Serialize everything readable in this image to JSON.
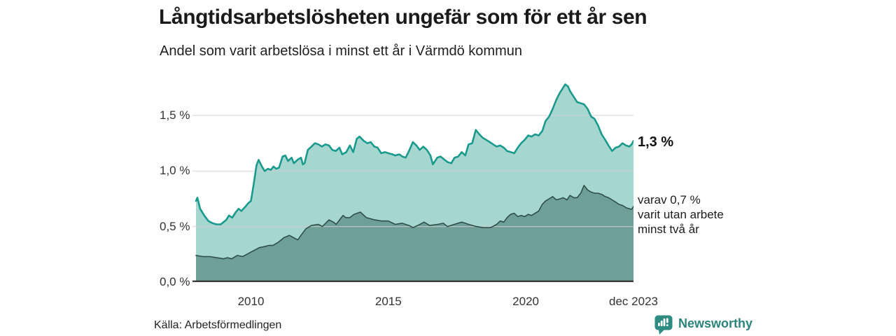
{
  "chart_data": {
    "type": "area",
    "title": "Långtidsarbetslösheten ungefär som för ett år sen",
    "subtitle": "Andel som varit arbetslösa i minst ett år i Värmdö kommun",
    "source": "Källa: Arbetsförmedlingen",
    "brand": "Newsworthy",
    "grid": "horizontal",
    "legend": "end-of-line-labels",
    "xlim": [
      2008.0,
      2023.92
    ],
    "ylim": [
      0,
      1.846
    ],
    "x_ticks": [
      {
        "label": "2010",
        "year": 2010
      },
      {
        "label": "2015",
        "year": 2015
      },
      {
        "label": "2020",
        "year": 2020
      },
      {
        "label": "dec 2023",
        "year": 2023.92
      }
    ],
    "y_ticks": [
      {
        "label": "1,5 %",
        "value": 1.5
      },
      {
        "label": "1,0 %",
        "value": 1.0
      },
      {
        "label": "0,5 %",
        "value": 0.5
      },
      {
        "label": "0,0 %",
        "value": 0.0
      }
    ],
    "annotations": {
      "primary": "1,3 %",
      "secondary_lines": [
        "varav 0,7 %",
        "varit utan arbete",
        "minst två år"
      ]
    },
    "colors": {
      "line_total": "#1a9a8c",
      "fill_total": "#a6d6d0",
      "line_two_years": "#2f4f49",
      "fill_two_years": "#6f9f99",
      "gridline": "#cfcfcf",
      "baseline": "#3d3d3d"
    },
    "series": [
      {
        "name": "minst ett år",
        "end_label": "1,3 %",
        "line_color": "#1a9a8c",
        "fill_color": "#a6d6d0",
        "line_width": 2.6,
        "points": [
          [
            2008.0,
            0.73
          ],
          [
            2008.05,
            0.76
          ],
          [
            2008.15,
            0.66
          ],
          [
            2008.3,
            0.6
          ],
          [
            2008.45,
            0.55
          ],
          [
            2008.6,
            0.53
          ],
          [
            2008.75,
            0.52
          ],
          [
            2008.9,
            0.52
          ],
          [
            2009.0,
            0.54
          ],
          [
            2009.1,
            0.56
          ],
          [
            2009.2,
            0.6
          ],
          [
            2009.32,
            0.58
          ],
          [
            2009.45,
            0.63
          ],
          [
            2009.55,
            0.66
          ],
          [
            2009.65,
            0.64
          ],
          [
            2009.8,
            0.68
          ],
          [
            2009.9,
            0.71
          ],
          [
            2010.0,
            0.73
          ],
          [
            2010.1,
            0.88
          ],
          [
            2010.2,
            1.05
          ],
          [
            2010.28,
            1.1
          ],
          [
            2010.4,
            1.04
          ],
          [
            2010.5,
            1.0
          ],
          [
            2010.62,
            1.02
          ],
          [
            2010.72,
            1.01
          ],
          [
            2010.82,
            1.04
          ],
          [
            2010.92,
            1.02
          ],
          [
            2011.02,
            1.03
          ],
          [
            2011.15,
            1.13
          ],
          [
            2011.25,
            1.14
          ],
          [
            2011.35,
            1.09
          ],
          [
            2011.48,
            1.12
          ],
          [
            2011.56,
            1.07
          ],
          [
            2011.69,
            1.1
          ],
          [
            2011.82,
            1.12
          ],
          [
            2011.89,
            1.06
          ],
          [
            2011.95,
            1.07
          ],
          [
            2012.07,
            1.19
          ],
          [
            2012.2,
            1.22
          ],
          [
            2012.33,
            1.25
          ],
          [
            2012.45,
            1.24
          ],
          [
            2012.58,
            1.22
          ],
          [
            2012.71,
            1.24
          ],
          [
            2012.84,
            1.23
          ],
          [
            2012.96,
            1.19
          ],
          [
            2013.09,
            1.18
          ],
          [
            2013.22,
            1.21
          ],
          [
            2013.32,
            1.15
          ],
          [
            2013.47,
            1.17
          ],
          [
            2013.6,
            1.23
          ],
          [
            2013.72,
            1.17
          ],
          [
            2013.85,
            1.29
          ],
          [
            2013.95,
            1.31
          ],
          [
            2014.11,
            1.27
          ],
          [
            2014.23,
            1.25
          ],
          [
            2014.36,
            1.26
          ],
          [
            2014.49,
            1.22
          ],
          [
            2014.61,
            1.21
          ],
          [
            2014.74,
            1.16
          ],
          [
            2014.88,
            1.17
          ],
          [
            2015.0,
            1.16
          ],
          [
            2015.15,
            1.15
          ],
          [
            2015.25,
            1.14
          ],
          [
            2015.4,
            1.15
          ],
          [
            2015.51,
            1.13
          ],
          [
            2015.63,
            1.12
          ],
          [
            2015.75,
            1.18
          ],
          [
            2015.89,
            1.26
          ],
          [
            2016.02,
            1.23
          ],
          [
            2016.14,
            1.19
          ],
          [
            2016.27,
            1.22
          ],
          [
            2016.4,
            1.19
          ],
          [
            2016.53,
            1.14
          ],
          [
            2016.62,
            1.06
          ],
          [
            2016.78,
            1.12
          ],
          [
            2016.9,
            1.13
          ],
          [
            2017.05,
            1.1
          ],
          [
            2017.16,
            1.08
          ],
          [
            2017.29,
            1.07
          ],
          [
            2017.41,
            1.12
          ],
          [
            2017.54,
            1.13
          ],
          [
            2017.67,
            1.17
          ],
          [
            2017.8,
            1.14
          ],
          [
            2017.92,
            1.24
          ],
          [
            2018.05,
            1.25
          ],
          [
            2018.18,
            1.37
          ],
          [
            2018.31,
            1.33
          ],
          [
            2018.43,
            1.3
          ],
          [
            2018.56,
            1.28
          ],
          [
            2018.69,
            1.26
          ],
          [
            2018.81,
            1.24
          ],
          [
            2018.94,
            1.22
          ],
          [
            2019.07,
            1.23
          ],
          [
            2019.2,
            1.21
          ],
          [
            2019.32,
            1.18
          ],
          [
            2019.45,
            1.17
          ],
          [
            2019.58,
            1.16
          ],
          [
            2019.71,
            1.21
          ],
          [
            2019.83,
            1.25
          ],
          [
            2019.96,
            1.28
          ],
          [
            2020.09,
            1.32
          ],
          [
            2020.21,
            1.31
          ],
          [
            2020.34,
            1.33
          ],
          [
            2020.47,
            1.32
          ],
          [
            2020.6,
            1.36
          ],
          [
            2020.72,
            1.45
          ],
          [
            2020.85,
            1.49
          ],
          [
            2020.98,
            1.56
          ],
          [
            2021.11,
            1.64
          ],
          [
            2021.23,
            1.7
          ],
          [
            2021.36,
            1.75
          ],
          [
            2021.44,
            1.78
          ],
          [
            2021.54,
            1.76
          ],
          [
            2021.61,
            1.72
          ],
          [
            2021.74,
            1.67
          ],
          [
            2021.87,
            1.62
          ],
          [
            2022.0,
            1.61
          ],
          [
            2022.12,
            1.6
          ],
          [
            2022.25,
            1.56
          ],
          [
            2022.38,
            1.49
          ],
          [
            2022.5,
            1.47
          ],
          [
            2022.63,
            1.41
          ],
          [
            2022.76,
            1.33
          ],
          [
            2022.89,
            1.28
          ],
          [
            2023.01,
            1.23
          ],
          [
            2023.14,
            1.18
          ],
          [
            2023.27,
            1.21
          ],
          [
            2023.39,
            1.22
          ],
          [
            2023.52,
            1.25
          ],
          [
            2023.65,
            1.23
          ],
          [
            2023.77,
            1.22
          ],
          [
            2023.85,
            1.24
          ],
          [
            2023.92,
            1.27
          ]
        ]
      },
      {
        "name": "minst två år",
        "end_label": "varav 0,7 % varit utan arbete minst två år",
        "line_color": "#2f4f49",
        "fill_color": "#6f9f99",
        "line_width": 1.6,
        "points": [
          [
            2008.0,
            0.24
          ],
          [
            2008.25,
            0.23
          ],
          [
            2008.5,
            0.23
          ],
          [
            2008.75,
            0.22
          ],
          [
            2009.0,
            0.21
          ],
          [
            2009.15,
            0.22
          ],
          [
            2009.3,
            0.21
          ],
          [
            2009.5,
            0.24
          ],
          [
            2009.7,
            0.23
          ],
          [
            2009.85,
            0.25
          ],
          [
            2010.0,
            0.27
          ],
          [
            2010.15,
            0.29
          ],
          [
            2010.3,
            0.31
          ],
          [
            2010.5,
            0.32
          ],
          [
            2010.65,
            0.33
          ],
          [
            2010.8,
            0.33
          ],
          [
            2011.0,
            0.36
          ],
          [
            2011.1,
            0.38
          ],
          [
            2011.2,
            0.4
          ],
          [
            2011.4,
            0.42
          ],
          [
            2011.55,
            0.4
          ],
          [
            2011.7,
            0.38
          ],
          [
            2011.85,
            0.43
          ],
          [
            2012.0,
            0.48
          ],
          [
            2012.2,
            0.51
          ],
          [
            2012.45,
            0.52
          ],
          [
            2012.6,
            0.5
          ],
          [
            2012.84,
            0.56
          ],
          [
            2013.0,
            0.54
          ],
          [
            2013.1,
            0.52
          ],
          [
            2013.35,
            0.6
          ],
          [
            2013.45,
            0.58
          ],
          [
            2013.6,
            0.58
          ],
          [
            2013.75,
            0.61
          ],
          [
            2013.98,
            0.63
          ],
          [
            2014.2,
            0.58
          ],
          [
            2014.5,
            0.56
          ],
          [
            2014.75,
            0.55
          ],
          [
            2015.0,
            0.55
          ],
          [
            2015.25,
            0.52
          ],
          [
            2015.5,
            0.53
          ],
          [
            2015.75,
            0.51
          ],
          [
            2015.9,
            0.49
          ],
          [
            2016.15,
            0.52
          ],
          [
            2016.3,
            0.54
          ],
          [
            2016.5,
            0.51
          ],
          [
            2016.8,
            0.52
          ],
          [
            2017.0,
            0.53
          ],
          [
            2017.15,
            0.5
          ],
          [
            2017.4,
            0.52
          ],
          [
            2017.67,
            0.54
          ],
          [
            2017.8,
            0.53
          ],
          [
            2017.92,
            0.52
          ],
          [
            2018.2,
            0.5
          ],
          [
            2018.45,
            0.49
          ],
          [
            2018.7,
            0.49
          ],
          [
            2018.8,
            0.5
          ],
          [
            2018.94,
            0.52
          ],
          [
            2019.07,
            0.55
          ],
          [
            2019.2,
            0.54
          ],
          [
            2019.32,
            0.58
          ],
          [
            2019.45,
            0.61
          ],
          [
            2019.58,
            0.62
          ],
          [
            2019.71,
            0.59
          ],
          [
            2019.83,
            0.6
          ],
          [
            2019.96,
            0.59
          ],
          [
            2020.09,
            0.61
          ],
          [
            2020.21,
            0.6
          ],
          [
            2020.34,
            0.62
          ],
          [
            2020.47,
            0.64
          ],
          [
            2020.6,
            0.7
          ],
          [
            2020.72,
            0.73
          ],
          [
            2020.85,
            0.75
          ],
          [
            2020.98,
            0.77
          ],
          [
            2021.11,
            0.74
          ],
          [
            2021.25,
            0.75
          ],
          [
            2021.36,
            0.76
          ],
          [
            2021.5,
            0.74
          ],
          [
            2021.61,
            0.78
          ],
          [
            2021.75,
            0.76
          ],
          [
            2021.87,
            0.76
          ],
          [
            2022.0,
            0.8
          ],
          [
            2022.12,
            0.87
          ],
          [
            2022.25,
            0.83
          ],
          [
            2022.38,
            0.81
          ],
          [
            2022.5,
            0.8
          ],
          [
            2022.63,
            0.8
          ],
          [
            2022.76,
            0.79
          ],
          [
            2022.89,
            0.77
          ],
          [
            2023.01,
            0.76
          ],
          [
            2023.14,
            0.74
          ],
          [
            2023.27,
            0.72
          ],
          [
            2023.39,
            0.7
          ],
          [
            2023.52,
            0.69
          ],
          [
            2023.65,
            0.67
          ],
          [
            2023.77,
            0.66
          ],
          [
            2023.85,
            0.655
          ],
          [
            2023.92,
            0.68
          ]
        ]
      }
    ]
  }
}
